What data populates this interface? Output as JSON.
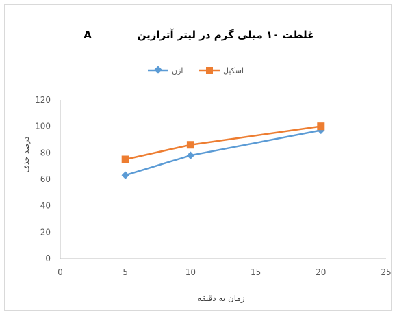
{
  "chart_data": {
    "type": "line",
    "panel_label": "A",
    "title": "غلظت ۱۰ میلی گرم در لیتر آترازین",
    "xlabel": "زمان به دقیقه",
    "ylabel": "درصد حذف",
    "xlim": [
      0,
      25
    ],
    "ylim": [
      0,
      120
    ],
    "x_ticks": [
      0,
      5,
      10,
      15,
      20,
      25
    ],
    "y_ticks": [
      0,
      20,
      40,
      60,
      80,
      100,
      120
    ],
    "grid": false,
    "legend_position": "top",
    "series": [
      {
        "name": "ازن",
        "color": "#5b9bd5",
        "marker": "diamond",
        "x": [
          5,
          10,
          20
        ],
        "y": [
          63,
          78,
          97
        ]
      },
      {
        "name": "اسکیل",
        "color": "#ed7d31",
        "marker": "square",
        "x": [
          5,
          10,
          20
        ],
        "y": [
          75,
          86,
          100
        ]
      }
    ]
  }
}
